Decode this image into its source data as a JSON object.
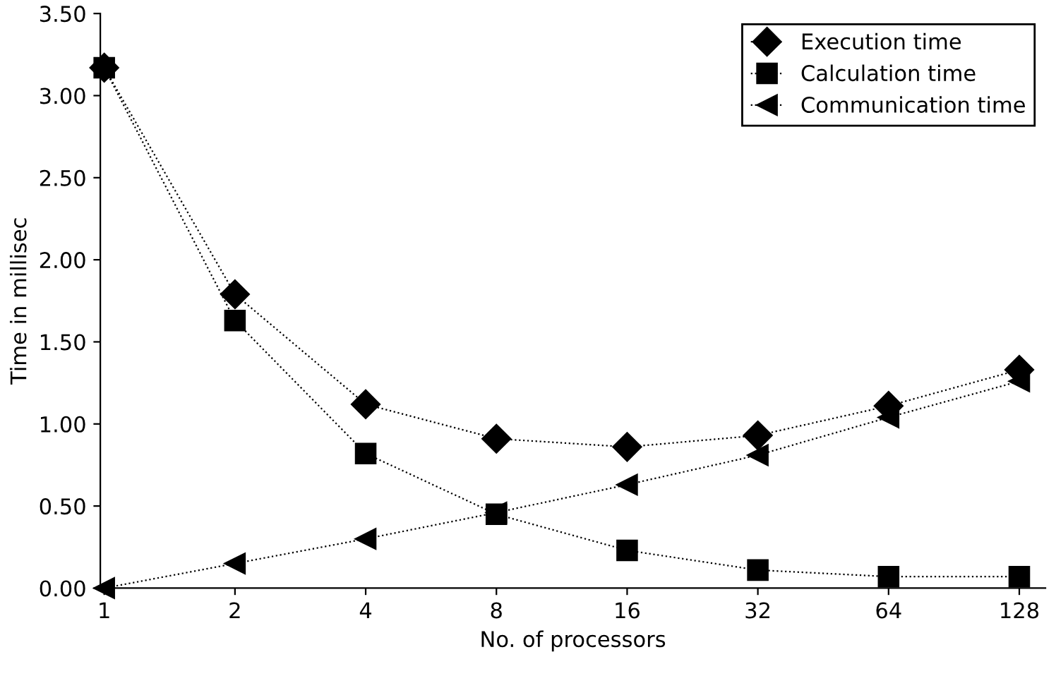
{
  "chart_data": {
    "type": "line",
    "xlabel": "No. of processors",
    "ylabel": "Time in millisec",
    "categories": [
      "1",
      "2",
      "4",
      "8",
      "16",
      "32",
      "64",
      "128"
    ],
    "series": [
      {
        "name": "Execution time",
        "color": "#000000",
        "marker": "diamond",
        "values": [
          3.17,
          1.79,
          1.12,
          0.91,
          0.86,
          0.93,
          1.11,
          1.33
        ]
      },
      {
        "name": "Calculation time",
        "color": "#000000",
        "marker": "square",
        "values": [
          3.17,
          1.63,
          0.82,
          0.45,
          0.23,
          0.11,
          0.07,
          0.07
        ]
      },
      {
        "name": "Communication time",
        "color": "#000000",
        "marker": "triangle",
        "values": [
          0,
          0.15,
          0.3,
          0.46,
          0.63,
          0.81,
          1.04,
          1.26
        ]
      }
    ],
    "ylim": [
      0,
      3.5
    ],
    "yticks": [
      {
        "value": 0,
        "label": "0.00"
      },
      {
        "value": 0.5,
        "label": "0.50"
      },
      {
        "value": 1,
        "label": "1.00"
      },
      {
        "value": 1.5,
        "label": "1.50"
      },
      {
        "value": 2,
        "label": "2.00"
      },
      {
        "value": 2.5,
        "label": "2.50"
      },
      {
        "value": 3,
        "label": "3.00"
      },
      {
        "value": 3.5,
        "label": "3.50"
      }
    ],
    "line_style": "dotted",
    "grid": false,
    "legend": "top right"
  }
}
